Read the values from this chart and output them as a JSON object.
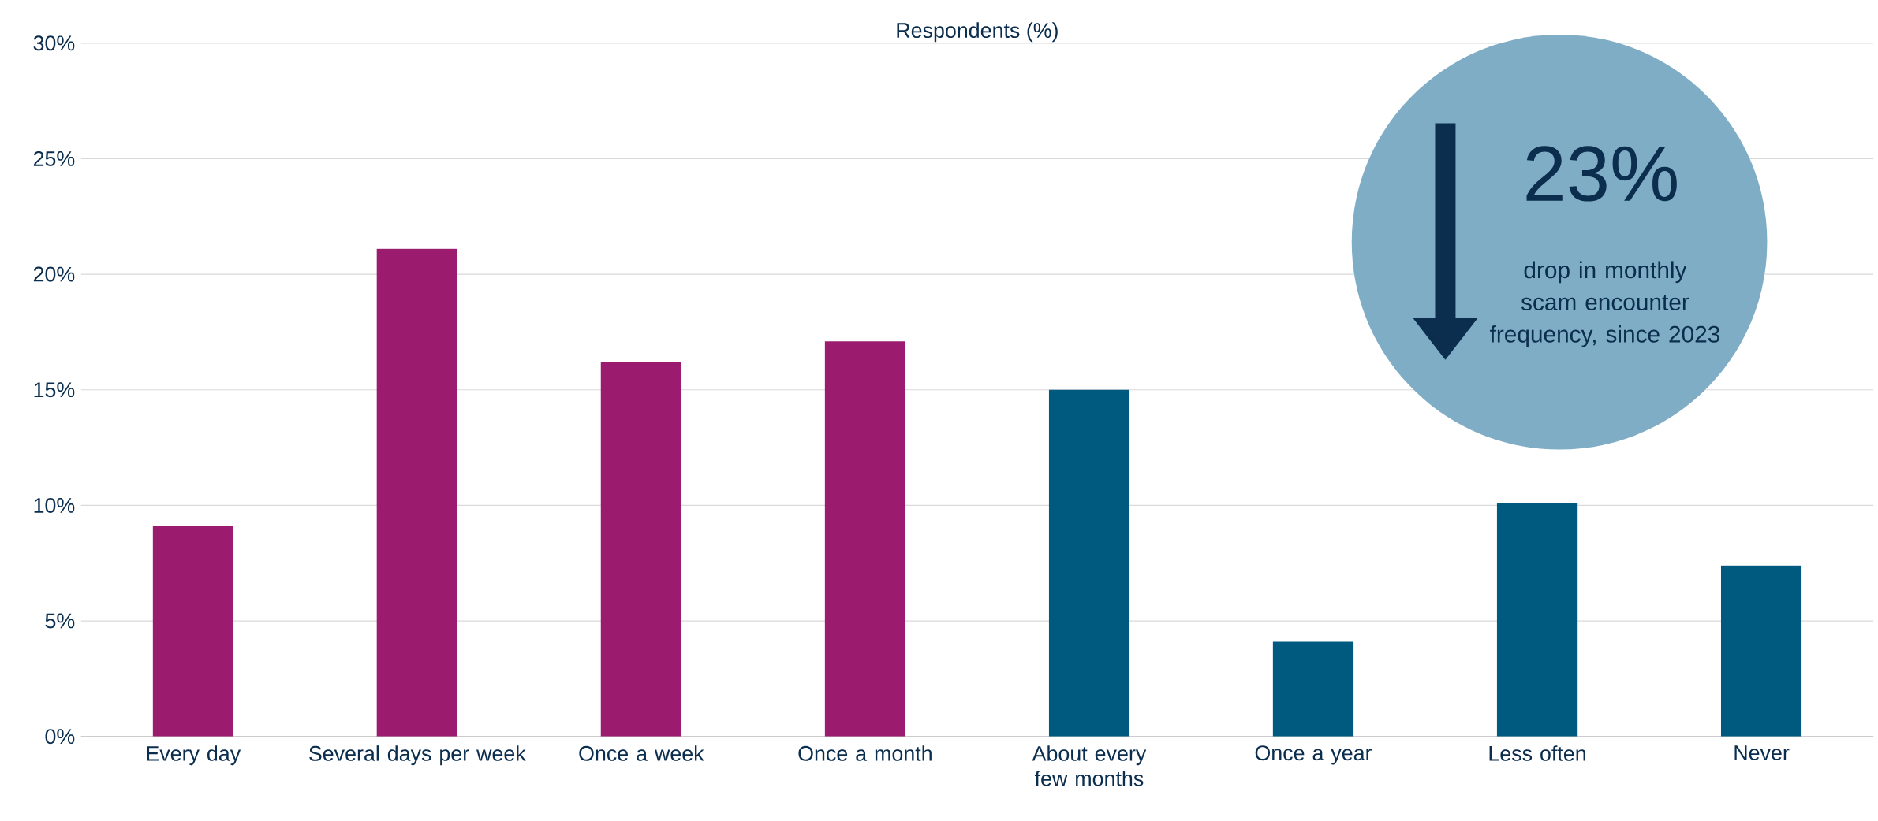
{
  "chart_data": {
    "type": "bar",
    "title": "Respondents (%)",
    "categories": [
      "Every day",
      "Several days per week",
      "Once a week",
      "Once a month",
      "About every few months",
      "Once a year",
      "Less often",
      "Never"
    ],
    "values": [
      9.1,
      21.1,
      16.2,
      17.1,
      15.0,
      4.1,
      10.1,
      7.4
    ],
    "colors": [
      "#9b1b6e",
      "#9b1b6e",
      "#9b1b6e",
      "#9b1b6e",
      "#005a80",
      "#005a80",
      "#005a80",
      "#005a80"
    ],
    "ylim": [
      0,
      30
    ],
    "yticks": [
      {
        "value": 0,
        "label": "0%"
      },
      {
        "value": 5,
        "label": "5%"
      },
      {
        "value": 10,
        "label": "10%"
      },
      {
        "value": 15,
        "label": "15%"
      },
      {
        "value": 20,
        "label": "20%"
      },
      {
        "value": 25,
        "label": "25%"
      },
      {
        "value": 30,
        "label": "30%"
      }
    ],
    "grid": "y",
    "annotations": [
      "23%",
      "drop in monthly scam encounter frequency, since 2023"
    ]
  }
}
